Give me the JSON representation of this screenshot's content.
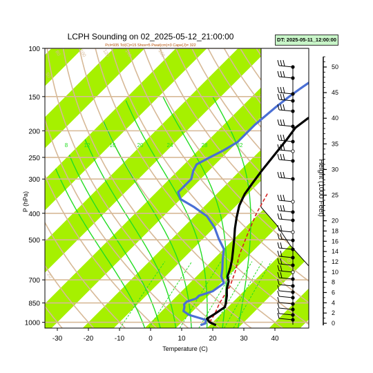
{
  "title": "LCPH Sounding on 02_2025-05-12_21:00:00",
  "subtitle": "Pcl=935 Tcl(C)=15 Shox=5 Pwat(cm)=3 Cape(J)= 322",
  "dt_label": "DT: 2025-05-11_12:00:00",
  "chart_data": {
    "type": "line",
    "title": "LCPH Sounding on 02_2025-05-12_21:00:00",
    "xlabel": "Temperature (C)",
    "ylabel": "P (hPa)",
    "y2label": "Height (1000 Feet)",
    "x_ticks": [
      -30,
      -20,
      -10,
      0,
      10,
      20,
      30,
      40
    ],
    "xlim": [
      -33,
      42
    ],
    "y_ticks": [
      100,
      150,
      200,
      250,
      300,
      400,
      500,
      700,
      850,
      1000
    ],
    "ylim": [
      1050,
      100
    ],
    "y_scale": "log",
    "height_ticks": [
      0,
      2,
      4,
      6,
      8,
      10,
      12,
      14,
      16,
      18,
      20,
      25,
      30,
      35,
      40,
      45,
      50
    ],
    "mixing_ratio_labels": [
      "8",
      "12",
      "16",
      "20",
      "24",
      "28",
      "32"
    ],
    "isotherm_labels": [
      "40",
      "30",
      "20",
      "10",
      "0",
      "-10",
      "-20",
      "-30"
    ],
    "dry_adiabat_labels": [
      "80",
      "100",
      "120",
      "140",
      "160",
      "50",
      "20"
    ],
    "colors": {
      "temperature": "#000000",
      "dewpoint": "#4a6fd4",
      "parcel": "#d42020",
      "band": "#a6f000",
      "dry_adiabat": "#d7b997",
      "moist_adiabat": "#22dd22",
      "mixing_ratio": "#22dd22"
    },
    "series": [
      {
        "points": [
          [
            22,
            1025
          ],
          [
            19,
            1000
          ],
          [
            17,
            970
          ],
          [
            18,
            930
          ],
          [
            19,
            880
          ],
          [
            18,
            850
          ],
          [
            16,
            800
          ],
          [
            14,
            760
          ],
          [
            13,
            735
          ],
          [
            12,
            710
          ],
          [
            10,
            680
          ],
          [
            8,
            630
          ],
          [
            6,
            590
          ],
          [
            3,
            540
          ],
          [
            0,
            495
          ],
          [
            -3,
            455
          ],
          [
            -6,
            415
          ],
          [
            -9,
            375
          ],
          [
            -11,
            340
          ],
          [
            -12,
            310
          ],
          [
            -13,
            280
          ],
          [
            -14,
            245
          ],
          [
            -15,
            215
          ],
          [
            -16,
            195
          ],
          [
            -15,
            180
          ],
          [
            -12,
            165
          ],
          [
            -9,
            150
          ],
          [
            -7,
            140
          ],
          [
            -6,
            130
          ],
          [
            -3,
            118
          ],
          [
            -1,
            108
          ],
          [
            1,
            100
          ]
        ]
      },
      {
        "points": [
          [
            17,
            1025
          ],
          [
            18,
            1010
          ],
          [
            17,
            980
          ],
          [
            10,
            940
          ],
          [
            7,
            910
          ],
          [
            6,
            880
          ],
          [
            5,
            860
          ],
          [
            5,
            840
          ],
          [
            7,
            820
          ],
          [
            7,
            800
          ],
          [
            10,
            770
          ],
          [
            11,
            720
          ],
          [
            8,
            680
          ],
          [
            6,
            640
          ],
          [
            3,
            590
          ],
          [
            0,
            540
          ],
          [
            -5,
            495
          ],
          [
            -10,
            450
          ],
          [
            -16,
            410
          ],
          [
            -23,
            380
          ],
          [
            -30,
            355
          ],
          [
            -33,
            335
          ],
          [
            -33,
            300
          ],
          [
            -35,
            280
          ],
          [
            -36,
            265
          ],
          [
            -34,
            250
          ],
          [
            -32,
            237
          ],
          [
            -30,
            220
          ],
          [
            -30,
            190
          ],
          [
            -29,
            165
          ],
          [
            -28,
            150
          ],
          [
            -27,
            140
          ],
          [
            -25,
            125
          ],
          [
            -22,
            110
          ],
          [
            -19,
            100
          ]
        ]
      },
      {
        "points": [
          [
            19,
            1000
          ],
          [
            18,
            935
          ],
          [
            16,
            850
          ],
          [
            14,
            740
          ],
          [
            11,
            655
          ],
          [
            7,
            570
          ],
          [
            3,
            480
          ],
          [
            -1,
            400
          ],
          [
            -4,
            335
          ]
        ]
      }
    ]
  }
}
